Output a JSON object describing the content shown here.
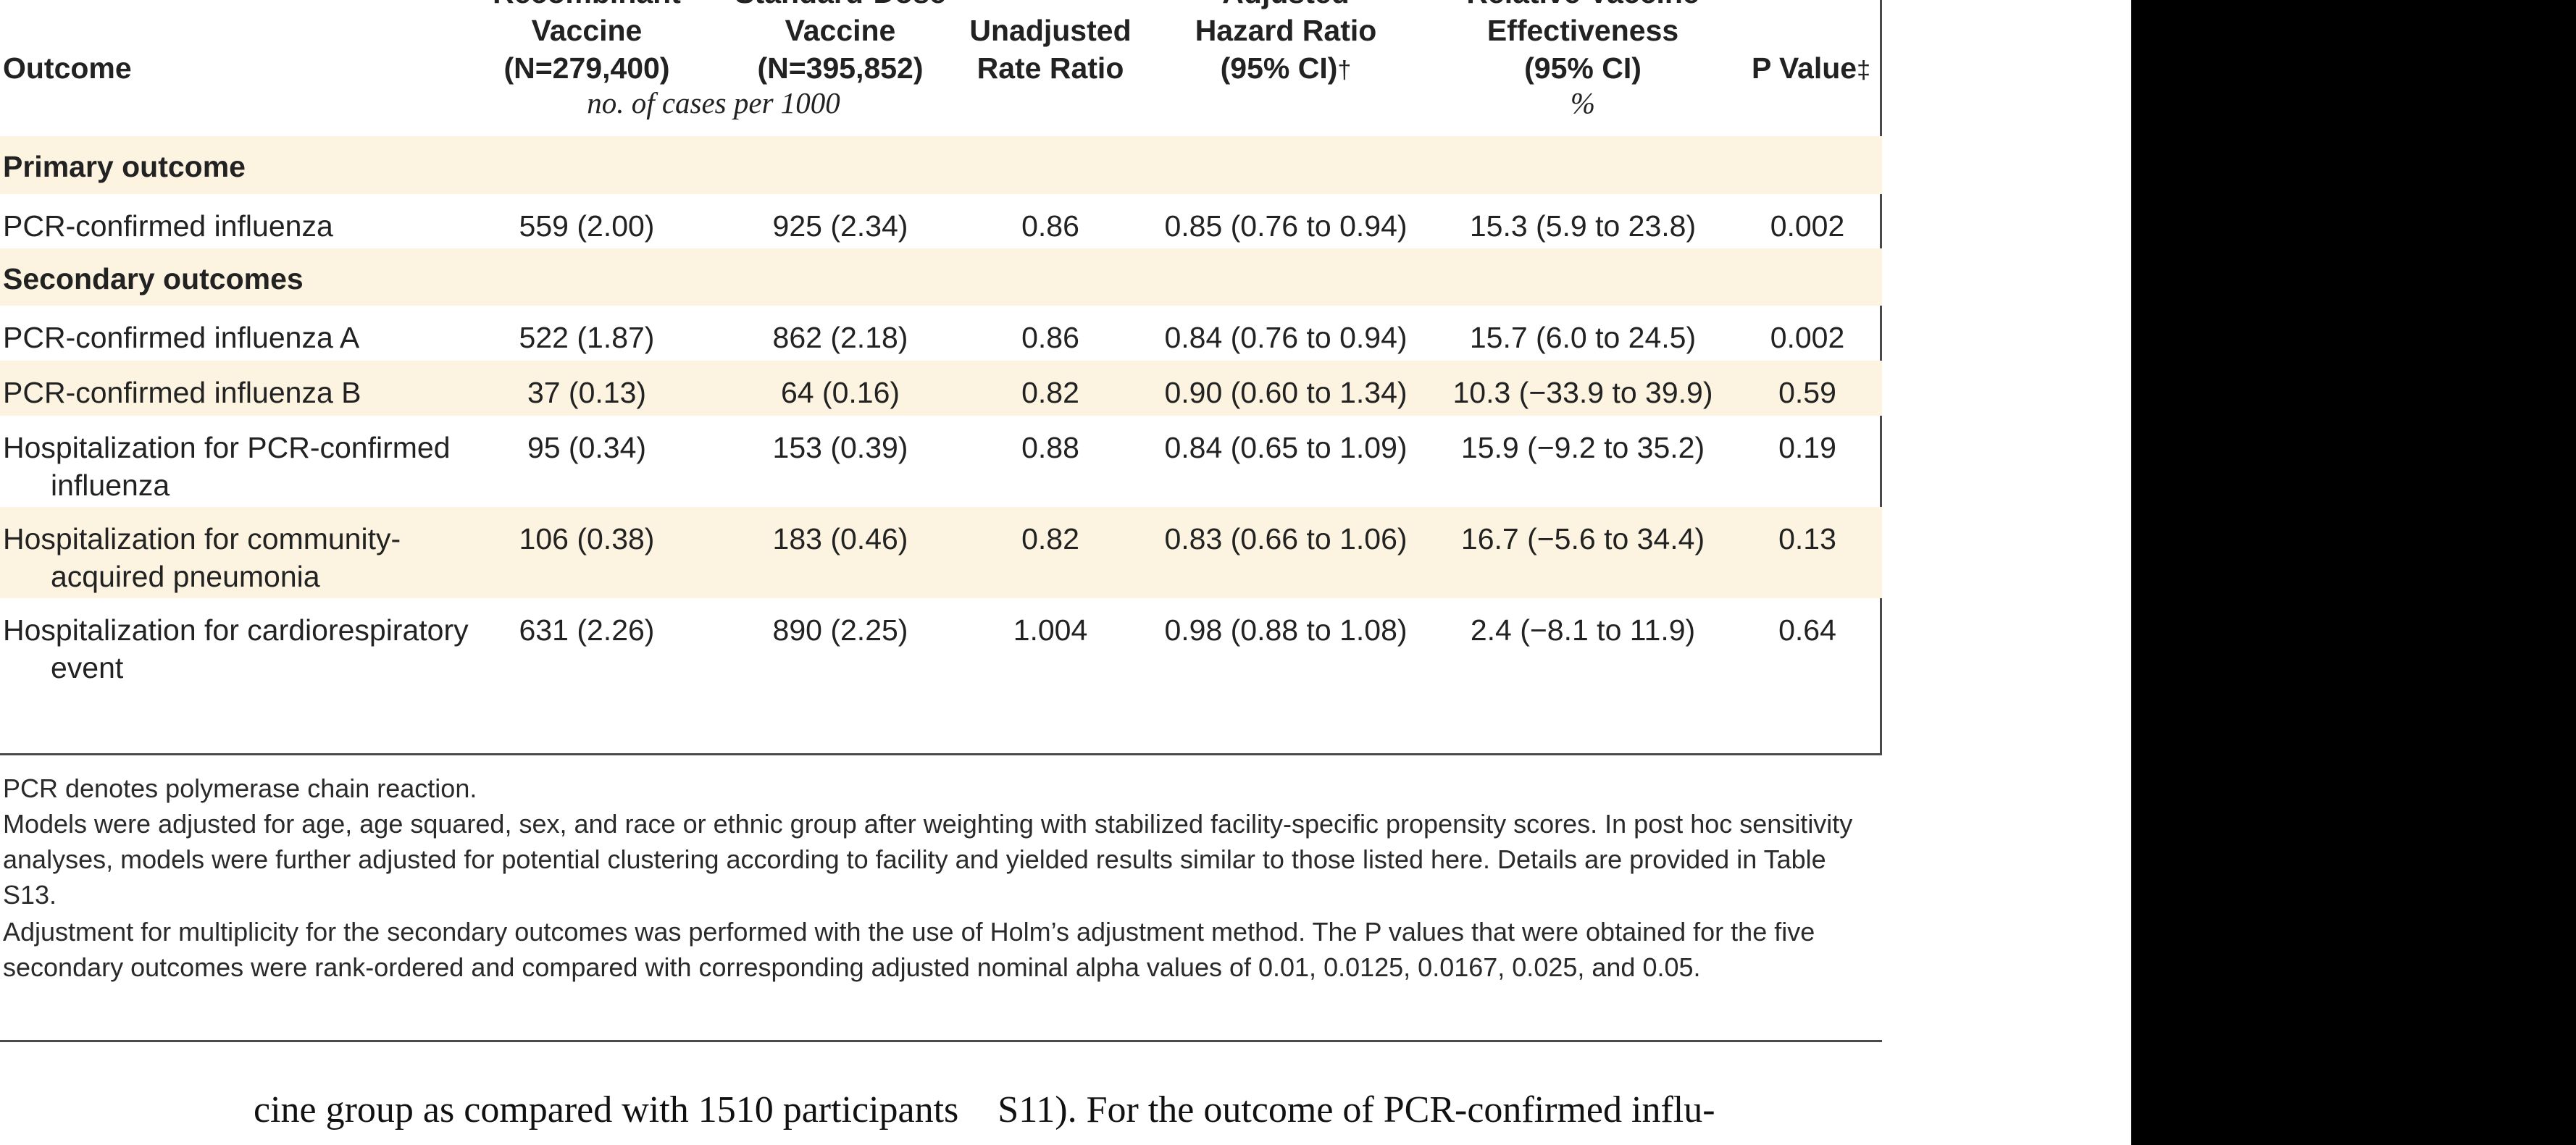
{
  "table": {
    "headers": {
      "outcome": "Outcome",
      "recombinant": [
        "Recombinant",
        "Vaccine",
        "(N=279,400)"
      ],
      "standard": [
        "Standard-Dose",
        "Vaccine",
        "(N=395,852)"
      ],
      "unadjusted": [
        "Unadjusted",
        "Rate Ratio"
      ],
      "adjusted_hr": [
        "Adjusted",
        "Hazard Ratio",
        "(95% CI)"
      ],
      "adjusted_hr_mark": "†",
      "rve": [
        "Relative Vaccine",
        "Effectiveness",
        "(95% CI)"
      ],
      "p_value": "P Value",
      "p_value_mark": "‡"
    },
    "units": {
      "cases": "no. of cases per 1000",
      "percent": "%"
    },
    "sections": {
      "primary": "Primary outcome",
      "secondary": "Secondary outcomes"
    },
    "rows": [
      {
        "outcome": "PCR-confirmed influenza",
        "recombinant": "559 (2.00)",
        "standard": "925 (2.34)",
        "unadjusted": "0.86",
        "adjusted_hr": "0.85 (0.76 to 0.94)",
        "rve": "15.3 (5.9 to 23.8)",
        "p_value": "0.002"
      },
      {
        "outcome": "PCR-confirmed influenza A",
        "recombinant": "522 (1.87)",
        "standard": "862 (2.18)",
        "unadjusted": "0.86",
        "adjusted_hr": "0.84 (0.76 to 0.94)",
        "rve": "15.7 (6.0 to 24.5)",
        "p_value": "0.002"
      },
      {
        "outcome": "PCR-confirmed influenza B",
        "recombinant": "37 (0.13)",
        "standard": "64 (0.16)",
        "unadjusted": "0.82",
        "adjusted_hr": "0.90 (0.60 to 1.34)",
        "rve": "10.3 (−33.9 to 39.9)",
        "p_value": "0.59"
      },
      {
        "outcome": "Hospitalization for PCR-confirmed influenza",
        "recombinant": "95 (0.34)",
        "standard": "153 (0.39)",
        "unadjusted": "0.88",
        "adjusted_hr": "0.84 (0.65 to 1.09)",
        "rve": "15.9 (−9.2 to 35.2)",
        "p_value": "0.19"
      },
      {
        "outcome": "Hospitalization for community-acquired pneumonia",
        "recombinant": "106 (0.38)",
        "standard": "183 (0.46)",
        "unadjusted": "0.82",
        "adjusted_hr": "0.83 (0.66 to 1.06)",
        "rve": "16.7 (−5.6 to 34.4)",
        "p_value": "0.13"
      },
      {
        "outcome": "Hospitalization for cardiorespiratory event",
        "recombinant": "631 (2.26)",
        "standard": "890 (2.25)",
        "unadjusted": "1.004",
        "adjusted_hr": "0.98 (0.88 to 1.08)",
        "rve": "2.4 (−8.1 to 11.9)",
        "p_value": "0.64"
      }
    ]
  },
  "footnotes": [
    "PCR denotes polymerase chain reaction.",
    "Models were adjusted for age, age squared, sex, and race or ethnic group after weighting with stabilized facility-specific propensity scores. In post hoc sensitivity analyses, models were further adjusted for potential clustering according to facility and yielded results similar to those listed here. Details are provided in Table S13.",
    "Adjustment for multiplicity for the secondary outcomes was performed with the use of Holm’s adjustment method. The P values that were obtained for the five secondary outcomes were rank-ordered and compared with corresponding adjusted nominal alpha values of 0.01, 0.0125, 0.0167, 0.025, and 0.05."
  ],
  "body_text": {
    "left": "cine group as compared with 1510 participants",
    "right": "S11). For the outcome of PCR-confirmed influ-"
  }
}
